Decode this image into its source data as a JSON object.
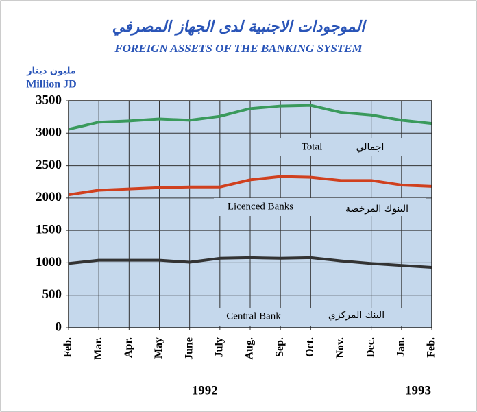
{
  "chart_data": {
    "type": "line",
    "title_ar": "الموجودات الاجنبية لدى الجهاز المصرفي",
    "title": "FOREIGN ASSETS OF THE BANKING SYSTEM",
    "y_label_ar": "مليون دينار",
    "y_label": "Million JD",
    "categories": [
      "Feb.",
      "Mar.",
      "Apr.",
      "May",
      "June",
      "July",
      "Aug.",
      "Sep.",
      "Oct.",
      "Nov.",
      "Dec.",
      "Jan.",
      "Feb."
    ],
    "years": [
      "1992",
      "1993"
    ],
    "ylim": [
      0,
      3500
    ],
    "yticks": [
      0,
      500,
      1000,
      1500,
      2000,
      2500,
      3000,
      3500
    ],
    "grid": true,
    "series": [
      {
        "name": "Total",
        "name_ar": "اجمالي",
        "color": "#3a9a5c",
        "values": [
          3060,
          3170,
          3190,
          3220,
          3200,
          3260,
          3380,
          3420,
          3430,
          3320,
          3280,
          3200,
          3150
        ]
      },
      {
        "name": "Licenced Banks",
        "name_ar": "البنوك المرخصة",
        "color": "#d0401e",
        "values": [
          2050,
          2120,
          2140,
          2160,
          2170,
          2170,
          2280,
          2330,
          2320,
          2270,
          2270,
          2200,
          2180
        ]
      },
      {
        "name": "Central Bank",
        "name_ar": "البنك المركزي",
        "color": "#333333",
        "values": [
          990,
          1040,
          1040,
          1040,
          1010,
          1070,
          1080,
          1070,
          1080,
          1030,
          990,
          960,
          930
        ]
      }
    ]
  }
}
